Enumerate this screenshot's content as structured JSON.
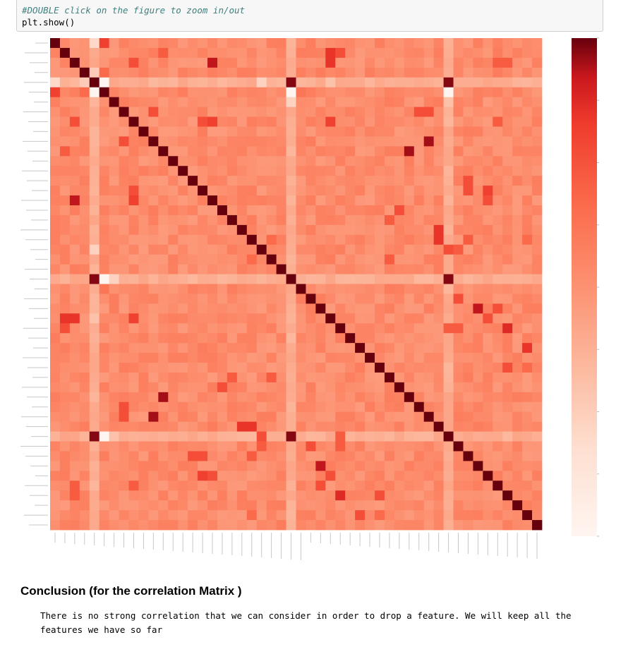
{
  "code_cell": {
    "comment": "#DOUBLE click on the figure to zoom in/out",
    "code": "plt.show()"
  },
  "colors": {
    "cmap": [
      "#fff5f0",
      "#fcbba1",
      "#fc9272",
      "#fb6a4a",
      "#ef3b2c",
      "#cb181d",
      "#67000d"
    ],
    "base": 0.3
  },
  "chart_data": {
    "type": "heatmap",
    "n": 50,
    "diagonal": 1.0,
    "colorbar_range": [
      -0.6,
      1.0
    ],
    "peaks": [
      [
        0,
        5,
        0.65
      ],
      [
        1,
        11,
        0.55
      ],
      [
        1,
        29,
        0.6
      ],
      [
        2,
        16,
        0.8
      ],
      [
        2,
        8,
        0.6
      ],
      [
        2,
        45,
        0.55
      ],
      [
        2,
        46,
        0.55
      ],
      [
        3,
        5,
        0.5
      ],
      [
        4,
        24,
        0.95
      ],
      [
        4,
        40,
        0.95
      ],
      [
        5,
        25,
        0.45
      ],
      [
        7,
        10,
        0.55
      ],
      [
        7,
        37,
        0.6
      ],
      [
        8,
        15,
        0.6
      ],
      [
        8,
        28,
        0.6
      ],
      [
        8,
        45,
        0.55
      ],
      [
        10,
        7,
        0.6
      ],
      [
        10,
        38,
        0.9
      ],
      [
        11,
        36,
        0.9
      ],
      [
        15,
        42,
        0.6
      ],
      [
        16,
        2,
        0.85
      ],
      [
        16,
        8,
        0.65
      ],
      [
        16,
        44,
        0.6
      ],
      [
        18,
        34,
        0.55
      ],
      [
        19,
        39,
        0.7
      ],
      [
        20,
        39,
        0.7
      ],
      [
        21,
        41,
        0.5
      ],
      [
        24,
        4,
        0.95
      ],
      [
        24,
        40,
        0.95
      ],
      [
        26,
        41,
        0.6
      ],
      [
        27,
        43,
        0.8
      ],
      [
        28,
        1,
        0.7
      ],
      [
        28,
        2,
        0.7
      ],
      [
        28,
        8,
        0.65
      ],
      [
        28,
        44,
        0.6
      ],
      [
        29,
        41,
        0.55
      ],
      [
        29,
        46,
        0.7
      ],
      [
        31,
        48,
        0.7
      ],
      [
        35,
        17,
        0.6
      ],
      [
        36,
        11,
        0.9
      ],
      [
        38,
        10,
        0.9
      ],
      [
        38,
        7,
        0.6
      ],
      [
        40,
        4,
        0.95
      ],
      [
        40,
        24,
        0.95
      ],
      [
        40,
        29,
        0.55
      ],
      [
        42,
        14,
        0.6
      ],
      [
        42,
        20,
        0.55
      ],
      [
        43,
        27,
        0.85
      ],
      [
        44,
        15,
        0.65
      ],
      [
        45,
        27,
        0.6
      ],
      [
        46,
        29,
        0.75
      ],
      [
        46,
        33,
        0.6
      ],
      [
        48,
        31,
        0.6
      ],
      [
        48,
        33,
        0.5
      ],
      [
        48,
        20,
        0.5
      ],
      [
        21,
        40,
        0.6
      ],
      [
        21,
        41,
        0.55
      ],
      [
        22,
        34,
        0.55
      ],
      [
        22,
        20,
        0.5
      ]
    ],
    "pale": [
      [
        4,
        0,
        0.08
      ],
      [
        4,
        3,
        0.12
      ],
      [
        4,
        5,
        0.0
      ],
      [
        4,
        21,
        0.1
      ],
      [
        4,
        28,
        0.15
      ],
      [
        5,
        4,
        0.0
      ],
      [
        5,
        24,
        0.0
      ],
      [
        5,
        40,
        0.0
      ],
      [
        24,
        5,
        0.0
      ],
      [
        40,
        5,
        0.0
      ],
      [
        24,
        6,
        0.1
      ],
      [
        40,
        6,
        0.15
      ]
    ],
    "pale_cols": [
      4,
      24,
      40
    ],
    "pale_rows": [
      4,
      24,
      40
    ]
  },
  "conclusion": {
    "title": "Conclusion (for the correlation Matrix )",
    "text": "There is no strong correlation that we can consider in order to drop a feature. We will keep all the features we have so far"
  }
}
